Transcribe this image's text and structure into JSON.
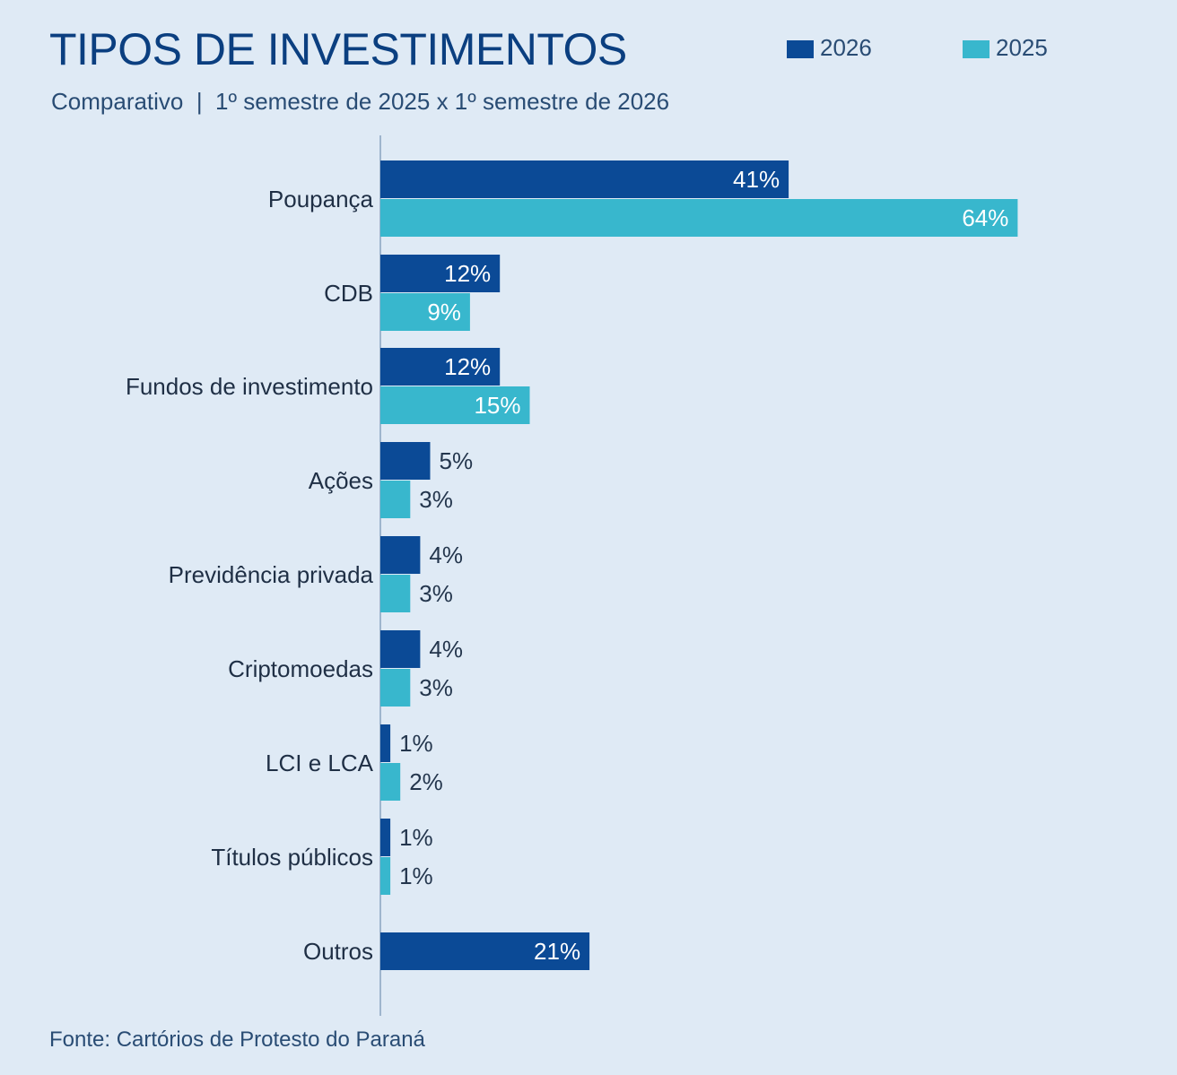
{
  "header": {
    "title": "TIPOS DE INVESTIMENTOS",
    "subtitle": "Comparativo  |  1º semestre de 2025 x 1º semestre de 2026"
  },
  "legend": [
    {
      "label": "2026",
      "color": "#0b4a96"
    },
    {
      "label": "2025",
      "color": "#38b7cd"
    }
  ],
  "footer": {
    "source": "Fonte: Cartórios de Protesto do Paraná"
  },
  "colors": {
    "background": "#dfeaf5",
    "text": "#1f2f45",
    "title": "#0b3f80",
    "series_2026": "#0b4a96",
    "series_2025": "#38b7cd",
    "label_inside": "#ffffff",
    "label_outside": "#24364d",
    "axis": "#9fb5cd"
  },
  "chart_data": {
    "type": "bar",
    "orientation": "horizontal",
    "categories": [
      "Poupança",
      "CDB",
      "Fundos de investimento",
      "Ações",
      "Previdência privada",
      "Criptomoedas",
      "LCI e LCA",
      "Títulos públicos",
      "Outros"
    ],
    "series": [
      {
        "name": "2026",
        "values": [
          41,
          12,
          12,
          5,
          4,
          4,
          1,
          1,
          21
        ],
        "labels": [
          "41%",
          "12%",
          "12%",
          "5%",
          "4%",
          "4%",
          "1%",
          "1%",
          "21%"
        ]
      },
      {
        "name": "2025",
        "values": [
          64,
          9,
          15,
          3,
          3,
          3,
          2,
          1,
          null
        ],
        "labels": [
          "64%",
          "9%",
          "15%",
          "3%",
          "3%",
          "3%",
          "2%",
          "1%",
          null
        ]
      }
    ],
    "title": "TIPOS DE INVESTIMENTOS",
    "subtitle": "Comparativo  |  1º semestre de 2025 x 1º semestre de 2026",
    "xlabel": "",
    "ylabel": "",
    "xlim": [
      0,
      64
    ],
    "grid": false,
    "legend_position": "top-right"
  }
}
